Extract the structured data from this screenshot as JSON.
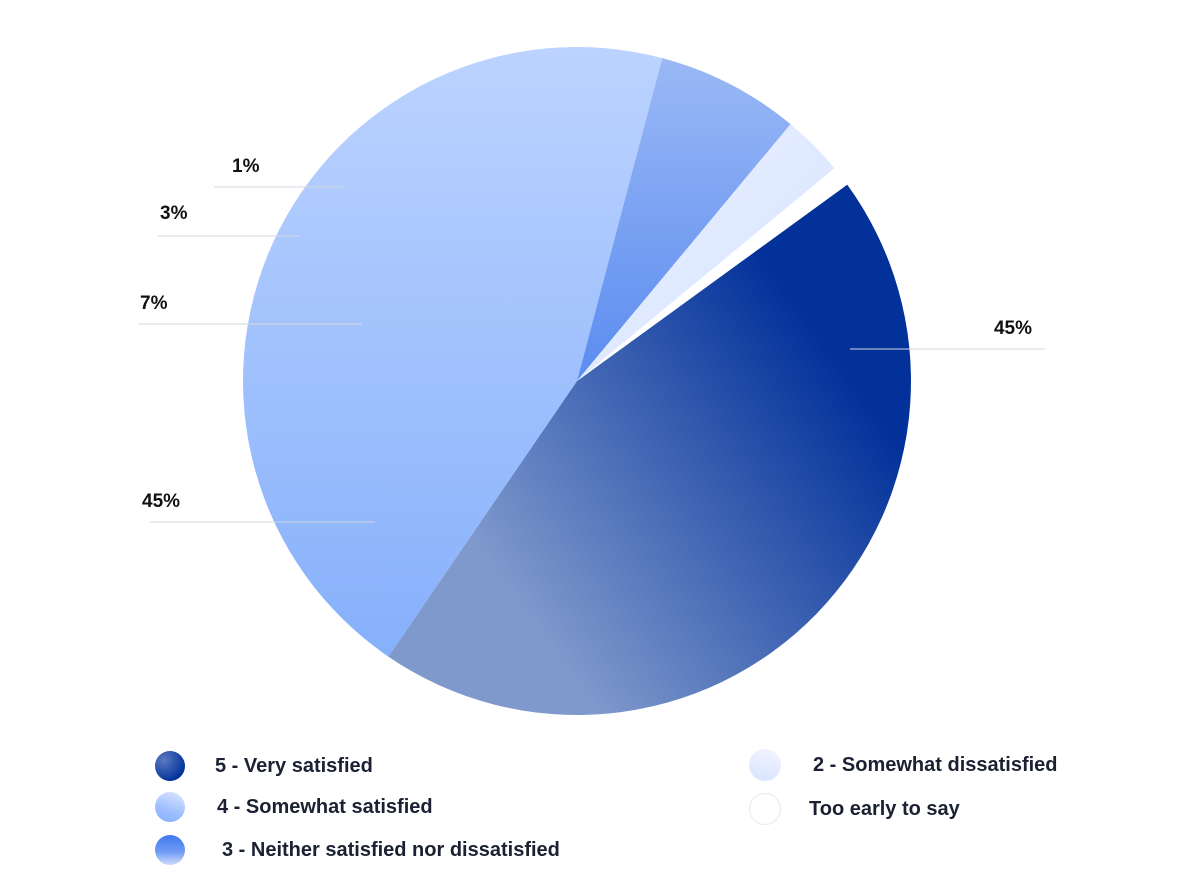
{
  "chart_data": {
    "type": "pie",
    "title": "",
    "start_angle_deg": -36,
    "slices": [
      {
        "label": "5 - Very satisfied",
        "value": 45,
        "display": "45%",
        "color_light": "#7f99cc",
        "color_dark": "#02319a"
      },
      {
        "label": "4 - Somewhat satisfied",
        "value": 45,
        "display": "45%",
        "color_light": "#bcd3ff",
        "color_dark": "#86b0fb"
      },
      {
        "label": "3 - Neither satisfied nor dissatisfied",
        "value": 7,
        "display": "7%",
        "color_light": "#9ab8f5",
        "color_dark": "#5a8cf0"
      },
      {
        "label": "2 - Somewhat dissatisfied",
        "value": 3,
        "display": "3%",
        "color_light": "#eef3ff",
        "color_dark": "#d2e0ff"
      },
      {
        "label": "Too early to say",
        "value": 1,
        "display": "1%",
        "color_light": "#ffffff",
        "color_dark": "#ffffff"
      }
    ],
    "legend_position": "bottom"
  },
  "legend": {
    "items": [
      "5 - Very satisfied",
      "4 - Somewhat satisfied",
      "3 - Neither satisfied nor dissatisfied",
      "2 - Somewhat dissatisfied",
      "Too early to say"
    ]
  }
}
